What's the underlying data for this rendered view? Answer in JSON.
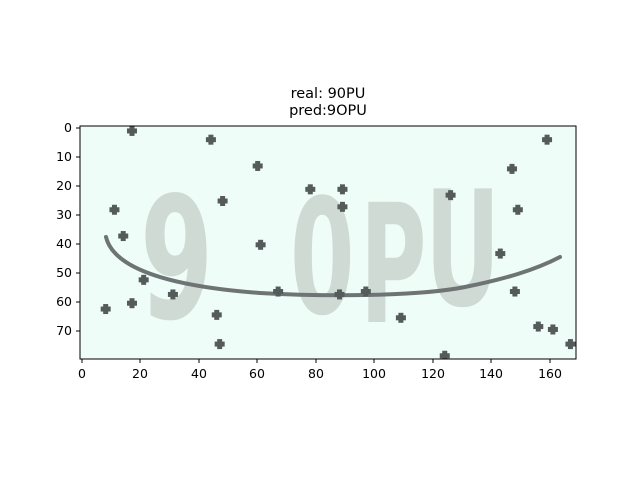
{
  "figure": {
    "title_real": "real: 90PU",
    "title_pred": "pred:9OPU",
    "captcha_text": "90PU",
    "captcha_glyphs": [
      "9",
      "0",
      "P",
      "U"
    ],
    "x_ticks": [
      "0",
      "20",
      "40",
      "60",
      "80",
      "100",
      "120",
      "140",
      "160"
    ],
    "y_ticks": [
      "0",
      "10",
      "20",
      "30",
      "40",
      "50",
      "60",
      "70"
    ],
    "colors": {
      "background": "#effdf8",
      "text": "#cbd6d0",
      "noise": "#555a5a",
      "curve": "#6e7373"
    }
  }
}
